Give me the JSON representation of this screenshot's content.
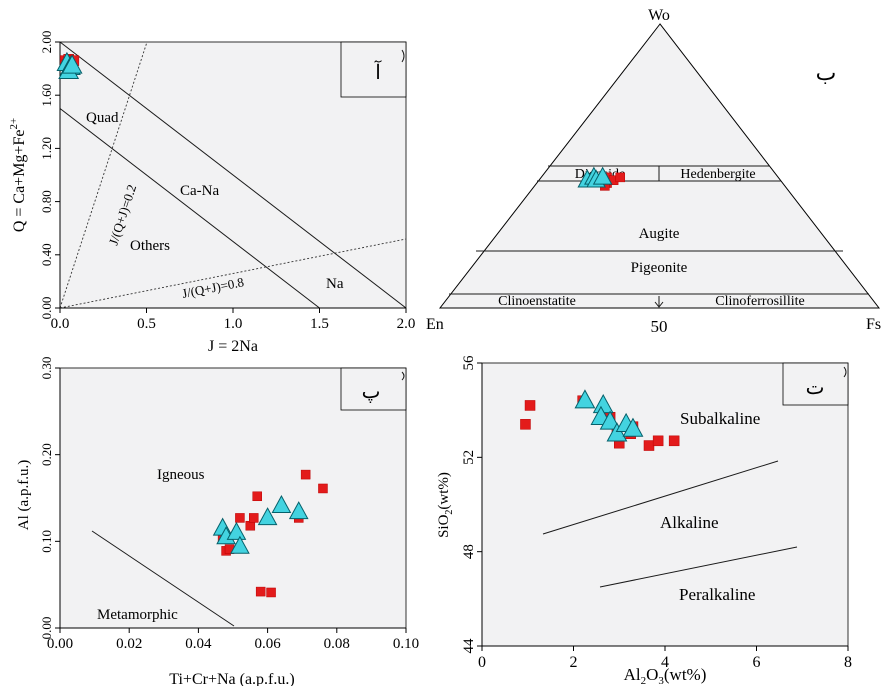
{
  "chart_data": [
    {
      "type": "scatter",
      "panel_label": "آ",
      "xlabel": "J = 2Na",
      "ylabel": "Q = Ca+Mg+Fe2+",
      "ylabel_main": "Q = Ca+Mg+Fe",
      "ylabel_sup": "2+",
      "xlim": [
        0,
        2
      ],
      "ylim": [
        0,
        2
      ],
      "x_ticks": [
        "0.0",
        "0.5",
        "1.0",
        "1.5",
        "2.0"
      ],
      "y_ticks": [
        "0.00",
        "0.40",
        "0.80",
        "1.20",
        "1.60",
        "2.00"
      ],
      "field_labels": {
        "quad": "Quad",
        "cana": "Ca-Na",
        "others": "Others",
        "na": "Na",
        "line1": "J/(Q+J)=0.2",
        "line2": "J/(Q+J)=0.8"
      },
      "series": [
        {
          "marker": "square",
          "color": "#e31b1b",
          "points": [
            [
              0.03,
              1.86
            ],
            [
              0.05,
              1.87
            ],
            [
              0.07,
              1.85
            ],
            [
              0.04,
              1.83
            ],
            [
              0.06,
              1.84
            ],
            [
              0.08,
              1.86
            ]
          ]
        },
        {
          "marker": "triangle",
          "color": "#43d3e0",
          "points": [
            [
              0.04,
              1.84
            ],
            [
              0.06,
              1.81
            ],
            [
              0.05,
              1.78
            ],
            [
              0.07,
              1.82
            ]
          ]
        }
      ]
    },
    {
      "type": "scatter",
      "subtype": "ternary",
      "panel_label": "ب",
      "apex_labels": {
        "top": "Wo",
        "left": "En",
        "right": "Fs"
      },
      "base_tick": "50",
      "field_labels": {
        "diopside": "Diopside",
        "hedenbergite": "Hedenbergite",
        "augite": "Augite",
        "pigeonite": "Pigeonite",
        "clinoenstatite": "Clinoenstatite",
        "clinoferrosillite": "Clinoferrosillite"
      },
      "series": [
        {
          "marker": "square",
          "color": "#e31b1b",
          "points_wo_fs": [
            [
              45,
              14
            ],
            [
              46,
              15
            ],
            [
              44,
              16
            ],
            [
              45,
              17
            ],
            [
              46,
              18
            ],
            [
              43,
              16
            ]
          ]
        },
        {
          "marker": "triangle",
          "color": "#43d3e0",
          "points_wo_fs": [
            [
              45,
              11
            ],
            [
              46,
              12
            ],
            [
              45,
              13
            ],
            [
              46,
              14
            ]
          ]
        }
      ]
    },
    {
      "type": "scatter",
      "panel_label": "پ",
      "xlabel": "Ti+Cr+Na (a.p.f.u.)",
      "ylabel": "Al (a.p.f.u.)",
      "xlim": [
        0,
        0.1
      ],
      "ylim": [
        0,
        0.3
      ],
      "x_ticks": [
        "0.00",
        "0.02",
        "0.04",
        "0.06",
        "0.08",
        "0.10"
      ],
      "y_ticks": [
        "0.00",
        "0.10",
        "0.20",
        "0.30"
      ],
      "field_labels": {
        "igneous": "Igneous",
        "metamorphic": "Metamorphic"
      },
      "series": [
        {
          "marker": "square",
          "color": "#e31b1b",
          "points": [
            [
              0.047,
              0.105
            ],
            [
              0.048,
              0.089
            ],
            [
              0.049,
              0.091
            ],
            [
              0.052,
              0.127
            ],
            [
              0.055,
              0.118
            ],
            [
              0.056,
              0.127
            ],
            [
              0.057,
              0.152
            ],
            [
              0.058,
              0.042
            ],
            [
              0.061,
              0.041
            ],
            [
              0.069,
              0.127
            ],
            [
              0.071,
              0.177
            ],
            [
              0.076,
              0.161
            ]
          ]
        },
        {
          "marker": "triangle",
          "color": "#43d3e0",
          "points": [
            [
              0.047,
              0.115
            ],
            [
              0.048,
              0.105
            ],
            [
              0.051,
              0.11
            ],
            [
              0.052,
              0.094
            ],
            [
              0.06,
              0.127
            ],
            [
              0.064,
              0.141
            ],
            [
              0.069,
              0.134
            ]
          ]
        }
      ]
    },
    {
      "type": "scatter",
      "panel_label": "ت",
      "xlabel": "Al2O3(wt%)",
      "xlabel_parts": [
        "Al",
        "2",
        "O",
        "3",
        "(wt%)"
      ],
      "ylabel": "SiO2(wt%)",
      "ylabel_parts": [
        "SiO",
        "2",
        "(wt%)"
      ],
      "xlim": [
        0,
        8
      ],
      "ylim": [
        44,
        56
      ],
      "x_ticks": [
        "0",
        "2",
        "4",
        "6",
        "8"
      ],
      "y_ticks": [
        "44",
        "48",
        "52",
        "56"
      ],
      "field_labels": {
        "subalkaline": "Subalkaline",
        "alkaline": "Alkaline",
        "peralkaline": "Peralkaline"
      },
      "series": [
        {
          "marker": "square",
          "color": "#e31b1b",
          "points": [
            [
              0.95,
              53.4
            ],
            [
              1.05,
              54.2
            ],
            [
              2.2,
              54.4
            ],
            [
              2.65,
              53.9
            ],
            [
              2.8,
              53.7
            ],
            [
              2.95,
              53.0
            ],
            [
              3.0,
              52.6
            ],
            [
              3.25,
              53.0
            ],
            [
              3.3,
              53.3
            ],
            [
              3.65,
              52.5
            ],
            [
              3.85,
              52.7
            ],
            [
              4.2,
              52.7
            ]
          ]
        },
        {
          "marker": "triangle",
          "color": "#43d3e0",
          "points": [
            [
              2.25,
              54.4
            ],
            [
              2.65,
              54.2
            ],
            [
              2.6,
              53.7
            ],
            [
              2.8,
              53.5
            ],
            [
              2.95,
              53.0
            ],
            [
              3.15,
              53.4
            ],
            [
              3.3,
              53.2
            ]
          ]
        }
      ]
    }
  ]
}
